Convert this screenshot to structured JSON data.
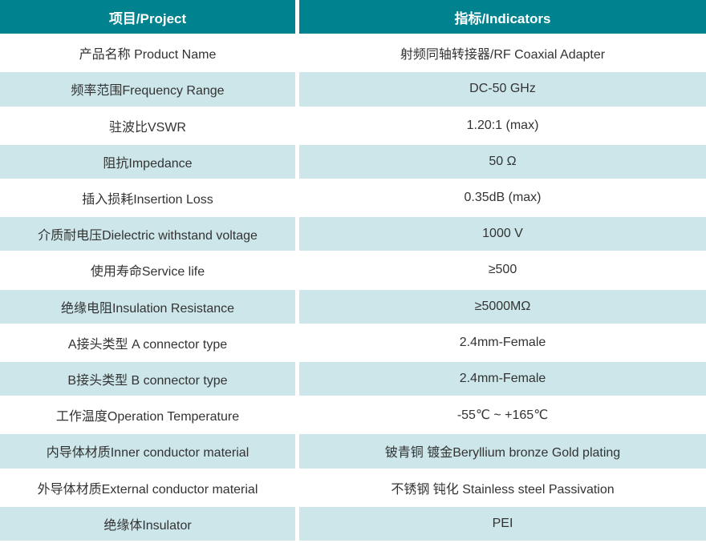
{
  "colors": {
    "header_bg": "#00838F",
    "alt_row_bg": "#CCE6EA",
    "row_bg": "#FFFFFF",
    "header_text": "#FFFFFF",
    "cell_text": "#333333",
    "divider": "#FFFFFF"
  },
  "table": {
    "columns": [
      {
        "key": "project",
        "label": "项目/Project"
      },
      {
        "key": "indicator",
        "label": "指标/Indicators"
      }
    ],
    "rows": [
      {
        "project": "产品名称 Product Name",
        "indicator": "射频同轴转接器/RF Coaxial Adapter"
      },
      {
        "project": "频率范围Frequency Range",
        "indicator": "DC-50 GHz"
      },
      {
        "project": "驻波比VSWR",
        "indicator": "1.20:1 (max)"
      },
      {
        "project": "阻抗Impedance",
        "indicator": "50 Ω"
      },
      {
        "project": "插入损耗Insertion Loss",
        "indicator": "0.35dB (max)"
      },
      {
        "project": "介质耐电压Dielectric withstand voltage",
        "indicator": "1000 V"
      },
      {
        "project": "使用寿命Service life",
        "indicator": "≥500"
      },
      {
        "project": "绝缘电阻Insulation Resistance",
        "indicator": "≥5000MΩ"
      },
      {
        "project": "A接头类型 A connector type",
        "indicator": "2.4mm-Female"
      },
      {
        "project": "B接头类型 B connector type",
        "indicator": "2.4mm-Female"
      },
      {
        "project": "工作温度Operation Temperature",
        "indicator": "-55℃ ~ +165℃"
      },
      {
        "project": "内导体材质Inner conductor material",
        "indicator": "铍青铜 镀金Beryllium bronze Gold plating"
      },
      {
        "project": "外导体材质External conductor material",
        "indicator": "不锈钢 钝化 Stainless steel Passivation"
      },
      {
        "project": "绝缘体Insulator",
        "indicator": "PEI"
      }
    ]
  }
}
